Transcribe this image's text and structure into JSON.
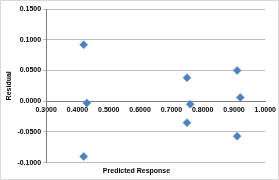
{
  "chart_data": {
    "type": "scatter",
    "x_label": "Predicted Response",
    "y_label": "Residual",
    "series": [
      {
        "name": "Residual",
        "color": "#4f81bd",
        "marker": "diamond",
        "x": [
          0.42,
          0.43,
          0.42,
          0.75,
          0.76,
          0.75,
          0.91,
          0.92,
          0.91
        ],
        "values": [
          0.092,
          -0.003,
          -0.09,
          0.038,
          -0.005,
          -0.035,
          0.05,
          0.006,
          -0.057
        ]
      }
    ],
    "xlim": [
      0.3,
      1.0
    ],
    "xticks": [
      {
        "value": 0.3,
        "label": "0.3000"
      },
      {
        "value": 0.4,
        "label": "0.4000"
      },
      {
        "value": 0.5,
        "label": "0.5000"
      },
      {
        "value": 0.6,
        "label": "0.6000"
      },
      {
        "value": 0.7,
        "label": "0.7000"
      },
      {
        "value": 0.8,
        "label": "0.8000"
      },
      {
        "value": 0.9,
        "label": "0.9000"
      },
      {
        "value": 1.0,
        "label": "1.0000"
      }
    ],
    "ylim": [
      -0.1,
      0.15
    ],
    "yticks": [
      {
        "value": -0.1,
        "label": "-0.1000"
      },
      {
        "value": -0.05,
        "label": "-0.0500"
      },
      {
        "value": 0,
        "label": "0.0000"
      },
      {
        "value": 0.05,
        "label": "0.0500"
      },
      {
        "value": 0.1,
        "label": "0.1000"
      },
      {
        "value": 0.15,
        "label": "0.1500"
      }
    ],
    "grid": "y"
  }
}
